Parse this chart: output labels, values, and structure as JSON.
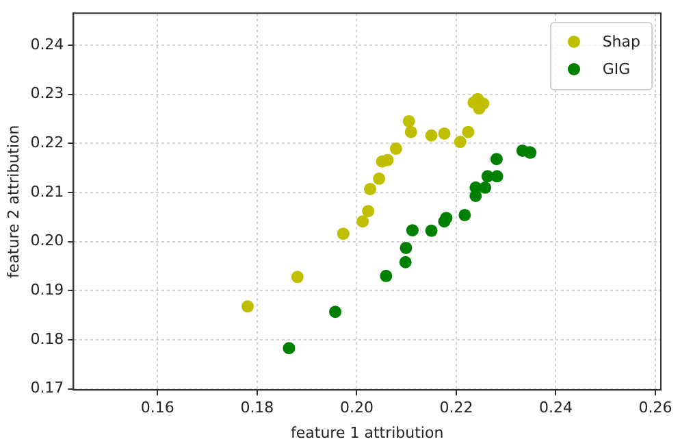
{
  "chart_data": {
    "type": "scatter",
    "xlabel": "feature 1 attribution",
    "ylabel": "feature 2 attribution",
    "xlim": [
      0.1431,
      0.2611
    ],
    "ylim": [
      0.1698,
      0.2465
    ],
    "xticks": [
      0.16,
      0.18,
      {
        "value": 0.2,
        "label": "0.20"
      },
      0.22,
      0.24,
      0.26
    ],
    "yticks": [
      0.17,
      0.18,
      0.19,
      {
        "value": 0.2,
        "label": "0.20"
      },
      0.21,
      0.22,
      0.23,
      0.24
    ],
    "grid": true,
    "legend": "top right",
    "marker": "circle",
    "series": [
      {
        "name": "Shap",
        "color": "#bfbf00",
        "x": [
          0.1781,
          0.1881,
          0.1973,
          0.2012,
          0.2023,
          0.2027,
          0.2045,
          0.2051,
          0.2062,
          0.2079,
          0.2105,
          0.2109,
          0.215,
          0.2176,
          0.2208,
          0.2224,
          0.2235,
          0.2243,
          0.2246,
          0.2254
        ],
        "values": [
          0.1868,
          0.1928,
          0.2016,
          0.2041,
          0.2062,
          0.2107,
          0.2128,
          0.2163,
          0.2166,
          0.2189,
          0.2245,
          0.2223,
          0.2216,
          0.222,
          0.2203,
          0.2223,
          0.2283,
          0.229,
          0.2271,
          0.2281
        ]
      },
      {
        "name": "GIG",
        "color": "#008000",
        "x": [
          0.1864,
          0.1957,
          0.2059,
          0.2098,
          0.2099,
          0.2112,
          0.215,
          0.2176,
          0.218,
          0.2217,
          0.2239,
          0.2239,
          0.2258,
          0.2263,
          0.2282,
          0.2281,
          0.2333,
          0.2347,
          0.2349
        ],
        "values": [
          0.1783,
          0.1857,
          0.193,
          0.1958,
          0.1987,
          0.2023,
          0.2022,
          0.2041,
          0.2048,
          0.2054,
          0.2093,
          0.211,
          0.211,
          0.2133,
          0.2133,
          0.2168,
          0.2185,
          0.2182,
          0.2181
        ]
      }
    ]
  }
}
